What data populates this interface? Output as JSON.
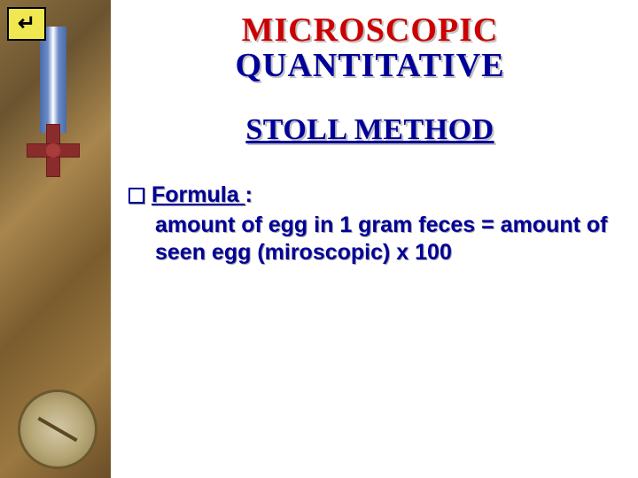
{
  "colors": {
    "title_red": "#cc0000",
    "title_blue": "#000099",
    "text_shadow": "#c0c0c0",
    "button_bg": "#f0e850",
    "button_border": "#000000",
    "background": "#ffffff"
  },
  "typography": {
    "title_fontsize": 38,
    "subtitle_fontsize": 34,
    "body_fontsize": 25,
    "title_family": "Times New Roman",
    "body_family": "Arial"
  },
  "back_button": {
    "symbol": "↵"
  },
  "title": {
    "line1": "MICROSCOPIC",
    "line2": "QUANTITATIVE"
  },
  "subtitle": "STOLL METHOD",
  "formula": {
    "label_underlined": "Formula ",
    "label_rest": ":",
    "body": "amount of egg in 1 gram feces = amount of seen egg (miroscopic) x 100"
  }
}
